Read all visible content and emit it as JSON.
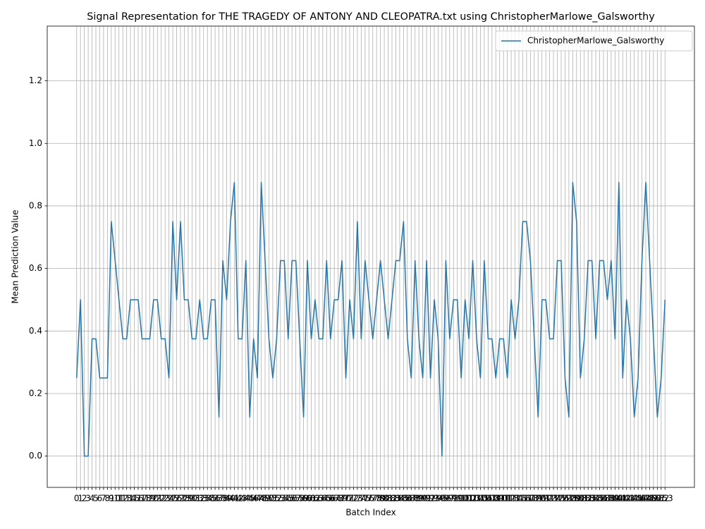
{
  "chart_data": {
    "type": "line",
    "title": "Signal Representation for THE TRAGEDY OF ANTONY AND CLEOPATRA.txt using ChristopherMarlowe_Galsworthy",
    "xlabel": "Batch Index",
    "ylabel": "Mean Prediction Value",
    "x": [
      0,
      1,
      2,
      3,
      4,
      5,
      6,
      7,
      8,
      9,
      10,
      11,
      12,
      13,
      14,
      15,
      16,
      17,
      18,
      19,
      20,
      21,
      22,
      23,
      24,
      25,
      26,
      27,
      28,
      29,
      30,
      31,
      32,
      33,
      34,
      35,
      36,
      37,
      38,
      39,
      40,
      41,
      42,
      43,
      44,
      45,
      46,
      47,
      48,
      49,
      50,
      51,
      52,
      53,
      54,
      55,
      56,
      57,
      58,
      59,
      60,
      61,
      62,
      63,
      64,
      65,
      66,
      67,
      68,
      69,
      70,
      71,
      72,
      73,
      74,
      75,
      76,
      77,
      78,
      79,
      80,
      81,
      82,
      83,
      84,
      85,
      86,
      87,
      88,
      89,
      90,
      91,
      92,
      93,
      94,
      95,
      96,
      97,
      98,
      99,
      100,
      101,
      102,
      103,
      104,
      105,
      106,
      107,
      108,
      109,
      110,
      111,
      112,
      113,
      114,
      115,
      116,
      117,
      118,
      119,
      120,
      121,
      122,
      123,
      124,
      125,
      126,
      127,
      128,
      129,
      130,
      131,
      132,
      133,
      134,
      135,
      136,
      137,
      138,
      139,
      140,
      141,
      142,
      143,
      144,
      145,
      146,
      147,
      148,
      149,
      150,
      151,
      152,
      153
    ],
    "series": [
      {
        "name": "ChristopherMarlowe_Galsworthy",
        "color": "#1f77b4",
        "values": [
          0.25,
          0.5,
          0,
          0,
          0.375,
          0.375,
          0.25,
          0.25,
          0.25,
          0.75,
          0.625,
          0.5,
          0.375,
          0.375,
          0.5,
          0.5,
          0.5,
          0.375,
          0.375,
          0.375,
          0.5,
          0.5,
          0.375,
          0.375,
          0.25,
          0.75,
          0.5,
          0.75,
          0.5,
          0.5,
          0.375,
          0.375,
          0.5,
          0.375,
          0.375,
          0.5,
          0.5,
          0.125,
          0.625,
          0.5,
          0.75,
          0.875,
          0.375,
          0.375,
          0.625,
          0.125,
          0.375,
          0.25,
          0.875,
          0.625,
          0.375,
          0.25,
          0.375,
          0.625,
          0.625,
          0.375,
          0.625,
          0.625,
          0.375,
          0.125,
          0.625,
          0.375,
          0.5,
          0.375,
          0.375,
          0.625,
          0.375,
          0.5,
          0.5,
          0.625,
          0.25,
          0.5,
          0.375,
          0.75,
          0.375,
          0.625,
          0.5,
          0.375,
          0.5,
          0.625,
          0.5,
          0.375,
          0.5,
          0.625,
          0.625,
          0.75,
          0.375,
          0.25,
          0.625,
          0.375,
          0.25,
          0.625,
          0.25,
          0.5,
          0.375,
          0,
          0.625,
          0.375,
          0.5,
          0.5,
          0.25,
          0.5,
          0.375,
          0.625,
          0.375,
          0.25,
          0.625,
          0.375,
          0.375,
          0.25,
          0.375,
          0.375,
          0.25,
          0.5,
          0.375,
          0.5,
          0.75,
          0.75,
          0.625,
          0.375,
          0.125,
          0.5,
          0.5,
          0.375,
          0.375,
          0.625,
          0.625,
          0.25,
          0.125,
          0.875,
          0.75,
          0.25,
          0.375,
          0.625,
          0.625,
          0.375,
          0.625,
          0.625,
          0.5,
          0.625,
          0.375,
          0.875,
          0.25,
          0.5,
          0.375,
          0.125,
          0.25,
          0.625,
          0.875,
          0.625,
          0.375,
          0.125,
          0.25,
          0.5
        ]
      }
    ],
    "xlim": [
      -7.65,
      160.65
    ],
    "xticks": [
      0,
      1,
      2,
      3,
      4,
      5,
      6,
      7,
      8,
      9,
      10,
      11,
      12,
      13,
      14,
      15,
      16,
      17,
      18,
      19,
      20,
      21,
      22,
      23,
      24,
      25,
      26,
      27,
      28,
      29,
      30,
      31,
      32,
      33,
      34,
      35,
      36,
      37,
      38,
      39,
      40,
      41,
      42,
      43,
      44,
      45,
      46,
      47,
      48,
      49,
      50,
      51,
      52,
      53,
      54,
      55,
      56,
      57,
      58,
      59,
      60,
      61,
      62,
      63,
      64,
      65,
      66,
      67,
      68,
      69,
      70,
      71,
      72,
      73,
      74,
      75,
      76,
      77,
      78,
      79,
      80,
      81,
      82,
      83,
      84,
      85,
      86,
      87,
      88,
      89,
      90,
      91,
      92,
      93,
      94,
      95,
      96,
      97,
      98,
      99,
      100,
      101,
      102,
      103,
      104,
      105,
      106,
      107,
      108,
      109,
      110,
      111,
      112,
      113,
      114,
      115,
      116,
      117,
      118,
      119,
      120,
      121,
      122,
      123,
      124,
      125,
      126,
      127,
      128,
      129,
      130,
      131,
      132,
      133,
      134,
      135,
      136,
      137,
      138,
      139,
      140,
      141,
      142,
      143,
      144,
      145,
      146,
      147,
      148,
      149,
      150,
      151,
      152,
      153
    ],
    "ylim": [
      -0.1,
      1.375
    ],
    "yticks": [
      {
        "value": 0,
        "label": "0.0"
      },
      0.2,
      0.4,
      0.6,
      0.8,
      {
        "value": 1,
        "label": "1.0"
      },
      1.2
    ],
    "grid": true,
    "legend": "upper right"
  }
}
